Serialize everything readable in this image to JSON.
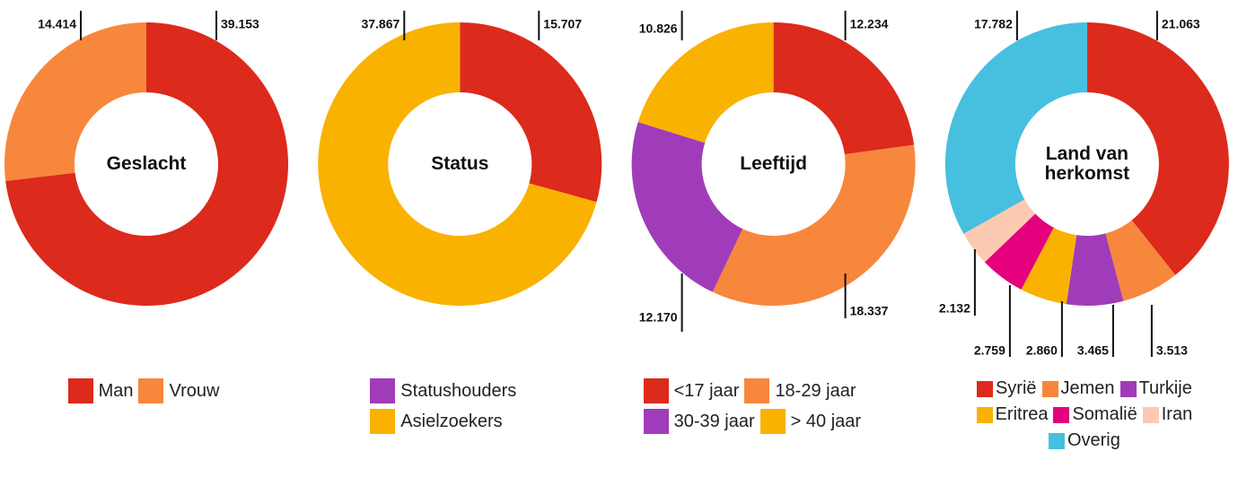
{
  "chart_data": [
    {
      "type": "donut",
      "title": "Geslacht",
      "categories": [
        "Man",
        "Vrouw"
      ],
      "values": [
        39153,
        14414
      ],
      "value_labels": [
        "39.153",
        "14.414"
      ],
      "colors": [
        "#dc2a1c",
        "#f7873c"
      ]
    },
    {
      "type": "donut",
      "title": "Status",
      "categories": [
        "Statushouders",
        "Asielzoekers"
      ],
      "values": [
        15707,
        37867
      ],
      "value_labels": [
        "15.707",
        "37.867"
      ],
      "colors": [
        "#dc2a1c",
        "#f9b200"
      ],
      "legend_colors": [
        "#a03cb9",
        "#f9b200"
      ]
    },
    {
      "type": "donut",
      "title": "Leeftijd",
      "categories": [
        "<17 jaar",
        "18-29 jaar",
        "30-39 jaar",
        "> 40 jaar"
      ],
      "values": [
        12234,
        18337,
        12170,
        10826
      ],
      "value_labels": [
        "12.234",
        "18.337",
        "12.170",
        "10.826"
      ],
      "colors": [
        "#dc2a1c",
        "#f7873c",
        "#a03cb9",
        "#f9b200"
      ]
    },
    {
      "type": "donut",
      "title": "Land van herkomst",
      "categories": [
        "Syrië",
        "Jemen",
        "Turkije",
        "Eritrea",
        "Somalië",
        "Iran",
        "Overig"
      ],
      "values": [
        21063,
        3513,
        3465,
        2860,
        2759,
        2132,
        17782
      ],
      "value_labels": [
        "21.063",
        "3.513",
        "3.465",
        "2.860",
        "2.759",
        "2.132",
        "17.782"
      ],
      "colors": [
        "#dc2a1c",
        "#f7873c",
        "#a03cb9",
        "#f9b200",
        "#e5007d",
        "#fccab0",
        "#47bfdf"
      ]
    }
  ]
}
